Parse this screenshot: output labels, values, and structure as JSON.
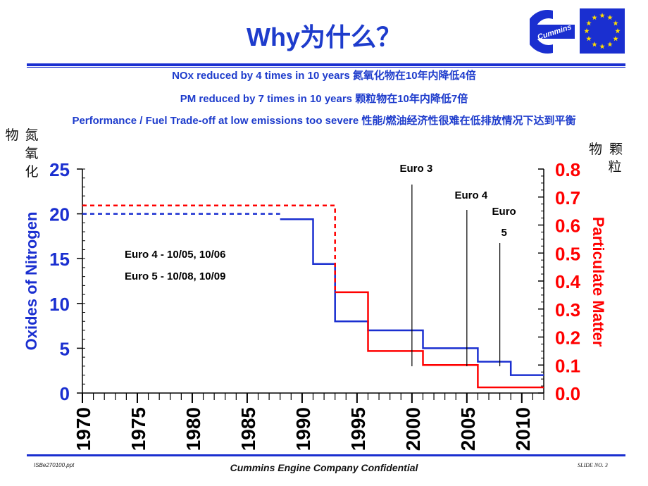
{
  "slide": {
    "title": "Why为什么？",
    "headline_1": "NOx reduced by 4 times in 10 years 氮氧化物在10年内降低4倍",
    "headline_2": "PM reduced by 7 times in 10 years 颗粒物在10年内降低7倍",
    "headline_3": "Performance / Fuel Trade-off at low emissions too severe 性能/燃油经济性很难在低排放情况下达到平衡",
    "left_cn_col1": "物",
    "left_cn_col2": [
      "氮",
      "氧",
      "化"
    ],
    "right_cn_row": "物 颗",
    "right_cn_below": "粒",
    "logo_text": "Cummins",
    "footer_left": "ISBe270100.ppt",
    "footer_center": "Cummins Engine Company Confidential",
    "footer_right": "SLIDE NO. 3"
  },
  "colors": {
    "title": "#1e3ccc",
    "nox": "#1a2fd0",
    "pm": "#ff0000",
    "logo": "#1a2fd0",
    "flag": "#1a2fd0",
    "stars": "#ffdd00"
  },
  "chart_data": {
    "type": "line",
    "step": true,
    "x_axis": {
      "range": [
        1970,
        2012
      ],
      "ticks": [
        "1970",
        "1975",
        "1980",
        "1985",
        "1990",
        "1995",
        "2000",
        "2005",
        "2010"
      ]
    },
    "y_left": {
      "label": "Oxides of Nitrogen",
      "range": [
        0,
        25
      ],
      "ticks": [
        "0",
        "5",
        "10",
        "15",
        "20",
        "25"
      ]
    },
    "y_right": {
      "label": "Particulate Matter",
      "range": [
        0,
        0.8
      ],
      "ticks": [
        "0.0",
        "0.1",
        "0.2",
        "0.3",
        "0.4",
        "0.5",
        "0.6",
        "0.7",
        "0.8"
      ]
    },
    "series": [
      {
        "axis": "left",
        "color": "#1a2fd0",
        "style": "dashed",
        "x": [
          1970,
          1988
        ],
        "y": [
          20,
          20
        ]
      },
      {
        "axis": "left",
        "color": "#1a2fd0",
        "style": "solid",
        "x": [
          1988,
          1991,
          1991,
          1993,
          1993,
          1996,
          1996,
          2001,
          2001,
          2006,
          2006,
          2009,
          2009,
          2012
        ],
        "y": [
          19.4,
          19.4,
          14.4,
          14.4,
          8,
          8,
          7,
          7,
          5,
          5,
          3.5,
          3.5,
          2,
          2
        ]
      },
      {
        "axis": "right",
        "color": "#ff0000",
        "style": "dashed",
        "x": [
          1970,
          1993,
          1993
        ],
        "y": [
          0.67,
          0.67,
          0.36
        ]
      },
      {
        "axis": "right",
        "color": "#ff0000",
        "style": "solid",
        "x": [
          1993,
          1996,
          1996,
          2001,
          2001,
          2006,
          2006,
          2012
        ],
        "y": [
          0.36,
          0.36,
          0.15,
          0.15,
          0.1,
          0.1,
          0.02,
          0.02
        ]
      }
    ],
    "markers": [
      {
        "year": 2000,
        "labels": [
          "Euro 3"
        ]
      },
      {
        "year": 2005,
        "labels": [
          "Euro 4"
        ]
      },
      {
        "year": 2008,
        "labels": [
          "Euro",
          "5"
        ]
      }
    ],
    "annotations": [
      "Euro 4 - 10/05, 10/06",
      "Euro 5 - 10/08, 10/09"
    ]
  }
}
